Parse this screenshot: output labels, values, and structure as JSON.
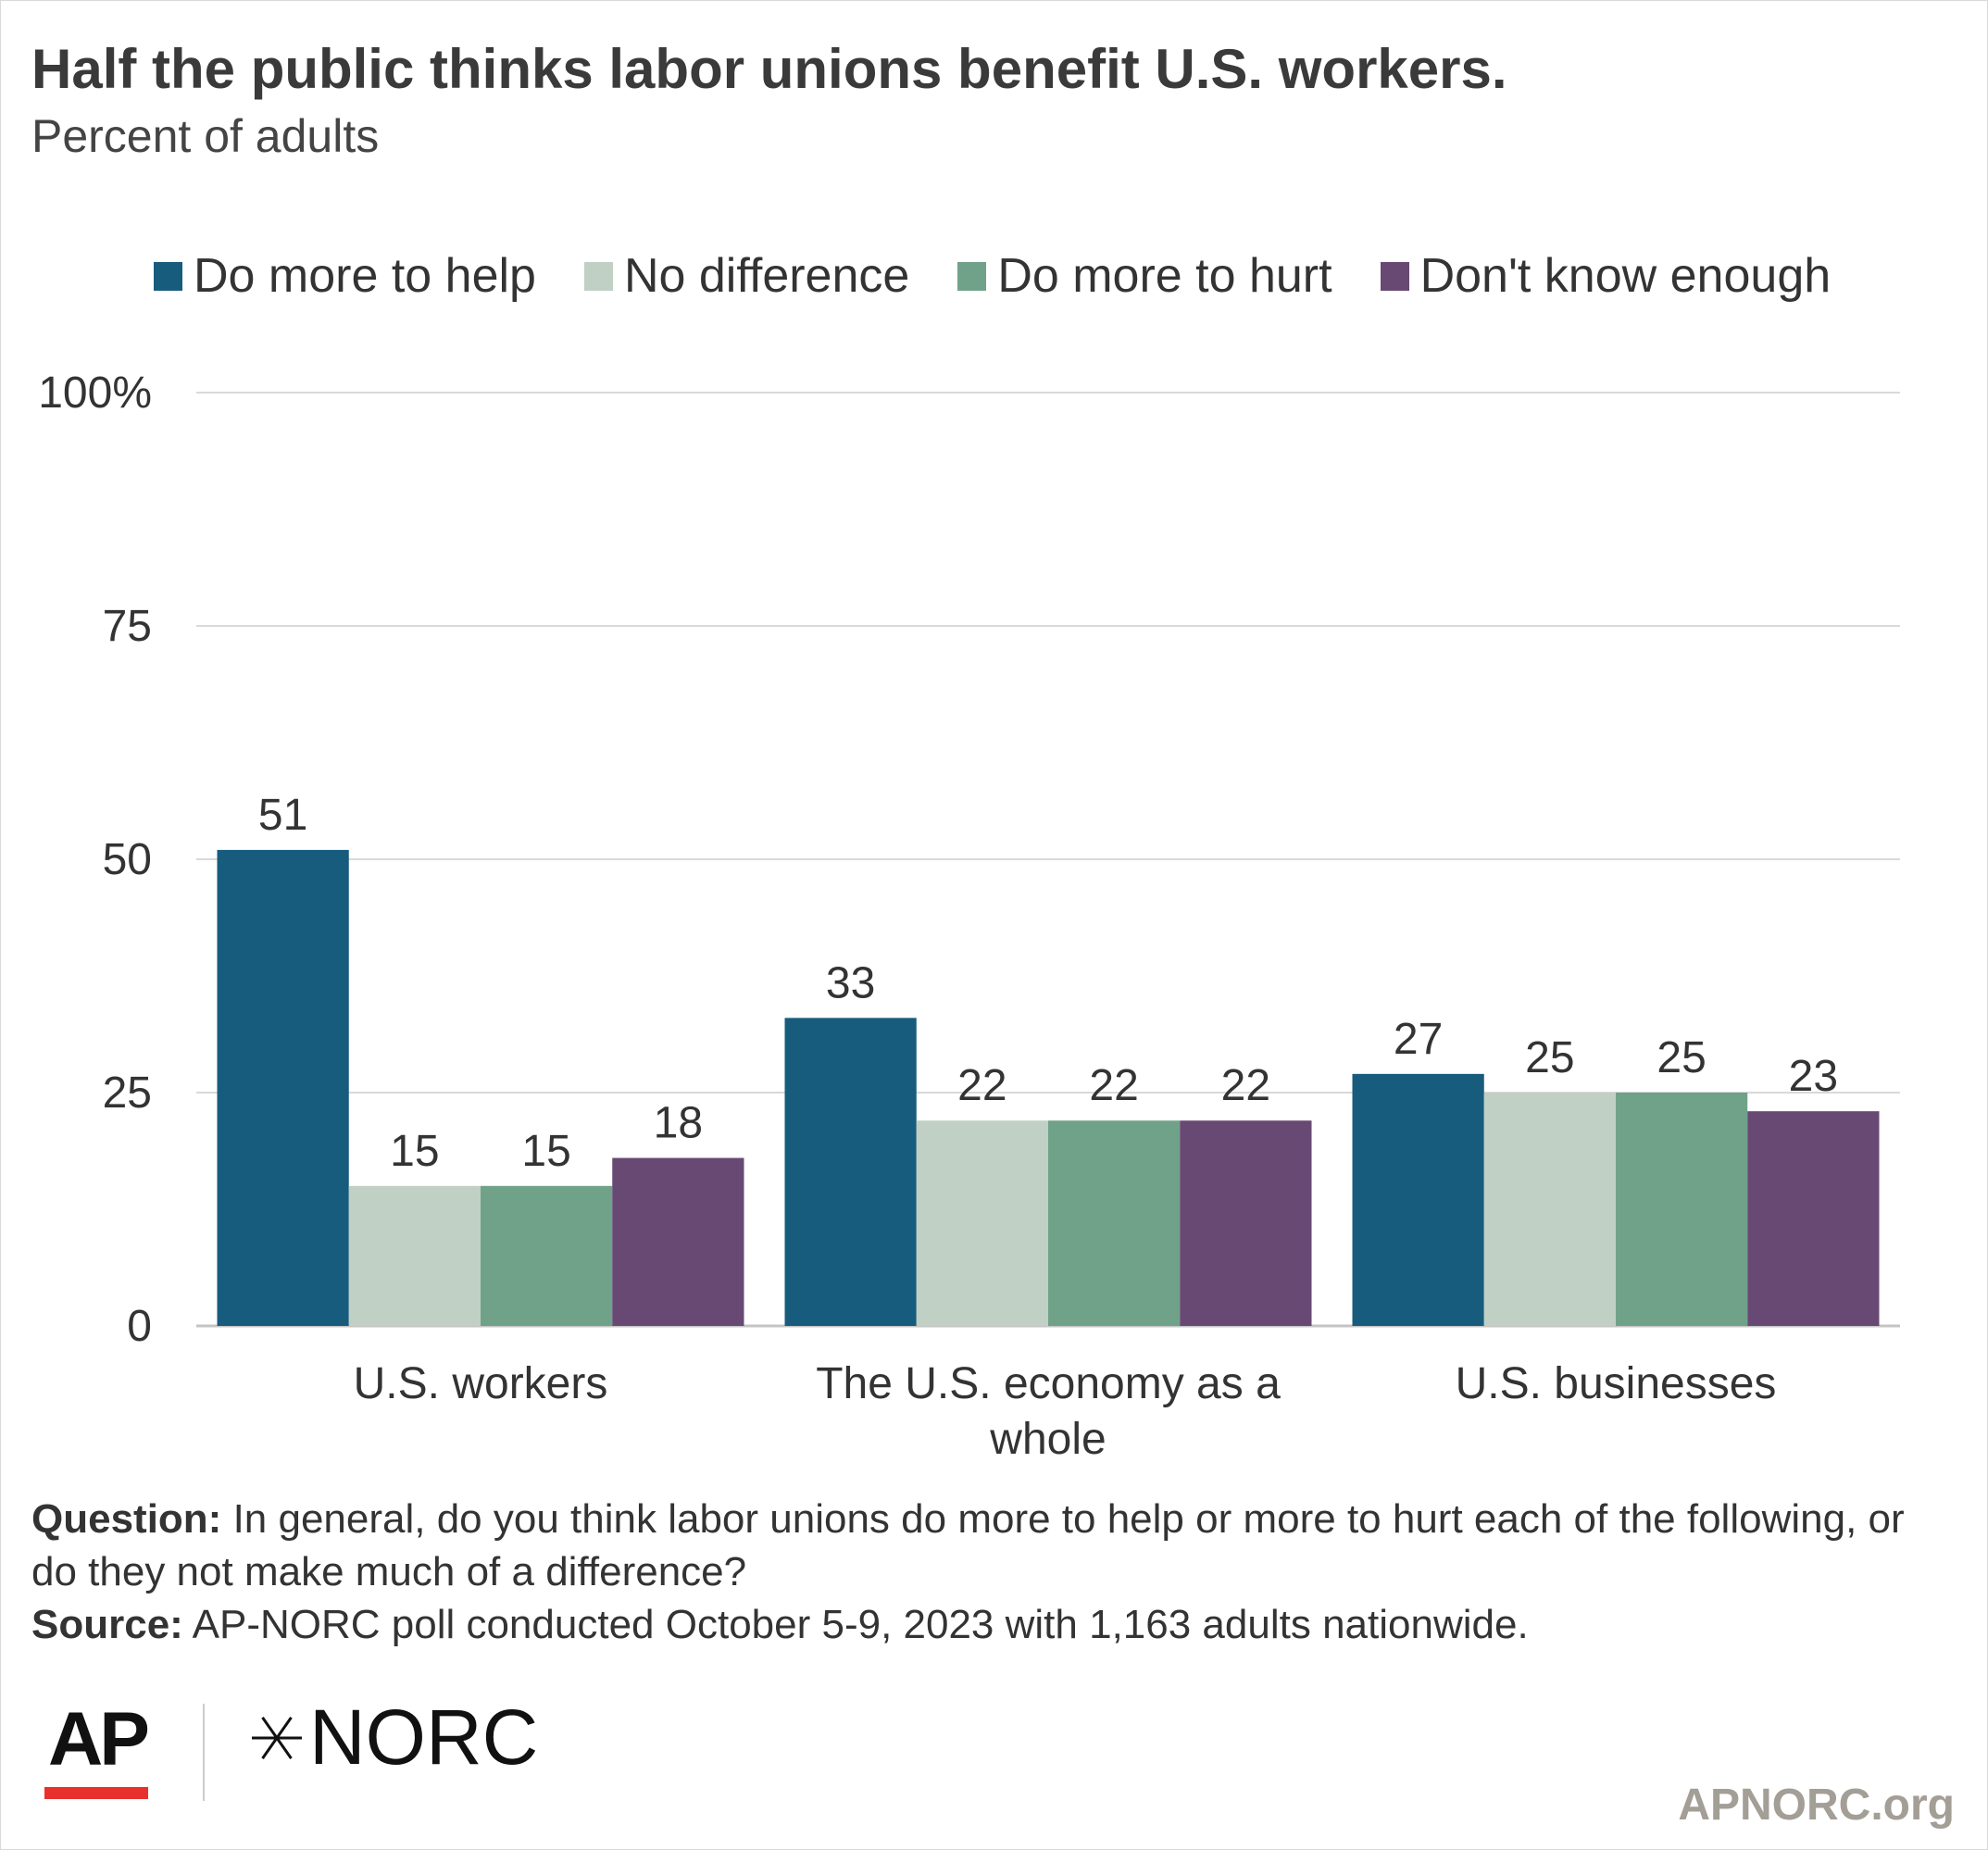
{
  "header": {
    "title": "Half the public thinks labor unions benefit U.S. workers.",
    "subtitle": "Percent of adults"
  },
  "chart_data": {
    "type": "bar",
    "categories": [
      "U.S. workers",
      "The U.S. economy as a whole",
      "U.S. businesses"
    ],
    "series": [
      {
        "name": "Do more to help",
        "color": "#175c7d",
        "values": [
          51,
          33,
          27
        ]
      },
      {
        "name": "No difference",
        "color": "#c0d0c4",
        "values": [
          15,
          22,
          25
        ]
      },
      {
        "name": "Do more to hurt",
        "color": "#70a289",
        "values": [
          15,
          22,
          25
        ]
      },
      {
        "name": "Don't know enough",
        "color": "#684974",
        "values": [
          18,
          22,
          23
        ]
      }
    ],
    "y_ticks": [
      {
        "value": 0,
        "label": "0"
      },
      {
        "value": 25,
        "label": "25"
      },
      {
        "value": 50,
        "label": "50"
      },
      {
        "value": 75,
        "label": "75"
      },
      {
        "value": 100,
        "label": "100%"
      }
    ],
    "ylim": [
      0,
      100
    ],
    "grid": true,
    "legend_position": "top"
  },
  "footer": {
    "question_label": "Question:",
    "question_text": "In general, do you think labor unions do more to help or more to hurt each of the following, or do they not make much of a difference?",
    "source_label": "Source:",
    "source_text": "AP-NORC poll conducted October 5-9, 2023 with 1,163 adults nationwide.",
    "logo_ap": "AP",
    "logo_norc": "NORC",
    "site": "APNORC.org"
  }
}
